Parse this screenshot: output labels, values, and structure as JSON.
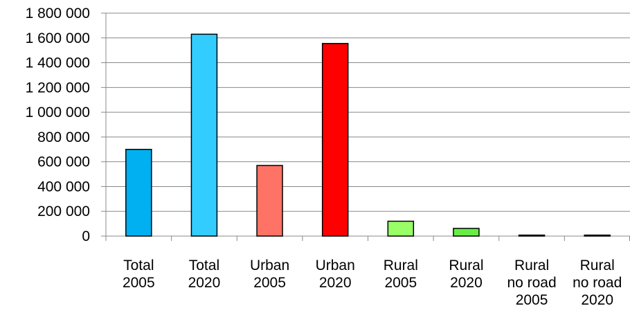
{
  "chart_data": {
    "type": "bar",
    "categories": [
      [
        "Total",
        "2005"
      ],
      [
        "Total",
        "2020"
      ],
      [
        "Urban",
        "2005"
      ],
      [
        "Urban",
        "2020"
      ],
      [
        "Rural",
        "2005"
      ],
      [
        "Rural",
        "2020"
      ],
      [
        "Rural",
        "no road",
        "2005"
      ],
      [
        "Rural",
        "no road",
        "2020"
      ]
    ],
    "values": [
      700000,
      1630000,
      570000,
      1555000,
      120000,
      62000,
      8000,
      8000
    ],
    "bar_colors": [
      "#00B0F0",
      "#33CCFF",
      "#FF7366",
      "#FF0000",
      "#99FF66",
      "#66EE44",
      "#33CC33",
      "#33CC33"
    ],
    "ylim": [
      0,
      1800000
    ],
    "yticks": [
      0,
      200000,
      400000,
      600000,
      800000,
      1000000,
      1200000,
      1400000,
      1600000,
      1800000
    ],
    "ytick_labels": [
      "0",
      "200 000",
      "400 000",
      "600 000",
      "800 000",
      "1 000 000",
      "1 200 000",
      "1 400 000",
      "1 600 000",
      "1 800 000"
    ],
    "grid": true,
    "legend": "none"
  }
}
